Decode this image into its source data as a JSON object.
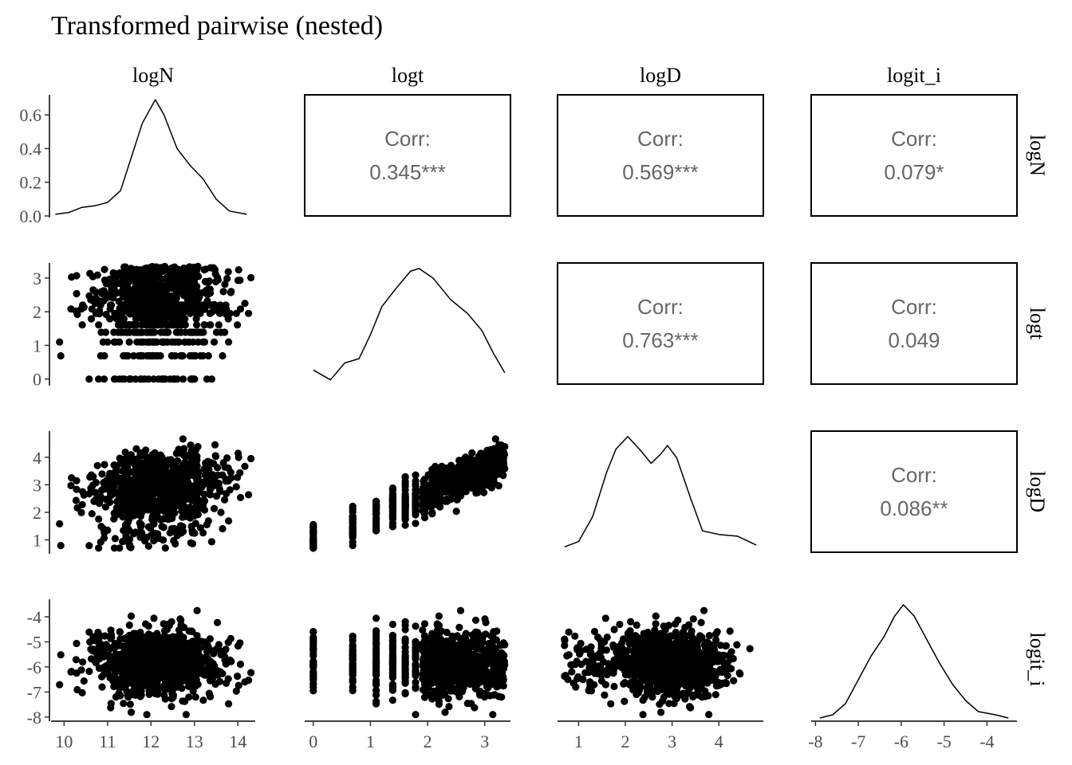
{
  "title": "Transformed pairwise (nested)",
  "variables": [
    "logN",
    "logt",
    "logD",
    "logit_i"
  ],
  "corr_label": "Corr:",
  "chart_data": {
    "type": "scatter-matrix",
    "title": "Transformed pairwise (nested)",
    "variables": [
      "logN",
      "logt",
      "logD",
      "logit_i"
    ],
    "axes": {
      "logN": {
        "range": [
          9.7,
          14.4
        ],
        "ticks": [
          10,
          11,
          12,
          13,
          14
        ]
      },
      "logt": {
        "range": [
          -0.15,
          3.45
        ],
        "ticks": [
          0,
          1,
          2,
          3
        ]
      },
      "logD": {
        "range": [
          0.55,
          4.95
        ],
        "ticks": [
          1,
          2,
          3,
          4
        ]
      },
      "logit_i": {
        "range": [
          -8.1,
          -3.3
        ],
        "ticks": [
          -8,
          -7,
          -6,
          -5,
          -4
        ]
      }
    },
    "density_ylim": [
      0,
      0.7
    ],
    "density_yticks": [
      "0.0",
      "0.2",
      "0.4",
      "0.6"
    ],
    "correlations": [
      {
        "row": "logN",
        "col": "logt",
        "value": "0.345***"
      },
      {
        "row": "logN",
        "col": "logD",
        "value": "0.569***"
      },
      {
        "row": "logN",
        "col": "logit_i",
        "value": "0.079*"
      },
      {
        "row": "logt",
        "col": "logD",
        "value": "0.763***"
      },
      {
        "row": "logt",
        "col": "logit_i",
        "value": "0.049"
      },
      {
        "row": "logD",
        "col": "logit_i",
        "value": "0.086**"
      }
    ],
    "densities": {
      "logN": [
        [
          9.8,
          0.01
        ],
        [
          10.1,
          0.02
        ],
        [
          10.4,
          0.05
        ],
        [
          10.7,
          0.06
        ],
        [
          11.0,
          0.08
        ],
        [
          11.3,
          0.15
        ],
        [
          11.55,
          0.35
        ],
        [
          11.8,
          0.55
        ],
        [
          12.1,
          0.69
        ],
        [
          12.3,
          0.6
        ],
        [
          12.6,
          0.4
        ],
        [
          12.9,
          0.3
        ],
        [
          13.2,
          0.22
        ],
        [
          13.5,
          0.1
        ],
        [
          13.8,
          0.03
        ],
        [
          14.2,
          0.01
        ]
      ],
      "logt": [
        [
          0.0,
          0.1
        ],
        [
          0.3,
          0.03
        ],
        [
          0.55,
          0.15
        ],
        [
          0.8,
          0.18
        ],
        [
          1.0,
          0.35
        ],
        [
          1.2,
          0.55
        ],
        [
          1.45,
          0.68
        ],
        [
          1.7,
          0.8
        ],
        [
          1.85,
          0.82
        ],
        [
          2.1,
          0.75
        ],
        [
          2.4,
          0.6
        ],
        [
          2.7,
          0.5
        ],
        [
          2.95,
          0.38
        ],
        [
          3.15,
          0.22
        ],
        [
          3.35,
          0.08
        ]
      ],
      "logD": [
        [
          0.7,
          0.03
        ],
        [
          1.0,
          0.06
        ],
        [
          1.3,
          0.2
        ],
        [
          1.6,
          0.45
        ],
        [
          1.8,
          0.58
        ],
        [
          2.05,
          0.65
        ],
        [
          2.3,
          0.58
        ],
        [
          2.55,
          0.5
        ],
        [
          2.75,
          0.55
        ],
        [
          2.9,
          0.6
        ],
        [
          3.1,
          0.53
        ],
        [
          3.4,
          0.3
        ],
        [
          3.65,
          0.12
        ],
        [
          4.0,
          0.1
        ],
        [
          4.4,
          0.09
        ],
        [
          4.8,
          0.04
        ]
      ],
      "logit_i": [
        [
          -7.9,
          0.01
        ],
        [
          -7.6,
          0.03
        ],
        [
          -7.3,
          0.1
        ],
        [
          -7.0,
          0.25
        ],
        [
          -6.7,
          0.4
        ],
        [
          -6.4,
          0.52
        ],
        [
          -6.15,
          0.65
        ],
        [
          -5.95,
          0.72
        ],
        [
          -5.7,
          0.65
        ],
        [
          -5.4,
          0.5
        ],
        [
          -5.1,
          0.35
        ],
        [
          -4.8,
          0.22
        ],
        [
          -4.5,
          0.12
        ],
        [
          -4.2,
          0.05
        ],
        [
          -3.8,
          0.03
        ],
        [
          -3.5,
          0.01
        ]
      ]
    },
    "scatter": {
      "n_points": 900,
      "logN": {
        "mean": 12.2,
        "sd": 0.75
      },
      "logt": {
        "discrete_levels": [
          0,
          0.69,
          1.1,
          1.39,
          1.61,
          1.79,
          1.95,
          2.08,
          2.2
        ],
        "continuous_range": [
          1.9,
          3.35
        ]
      },
      "logD": {
        "min": 0.7,
        "max": 4.8
      },
      "logit_i": {
        "mean": -5.9,
        "sd": 0.65
      }
    }
  }
}
